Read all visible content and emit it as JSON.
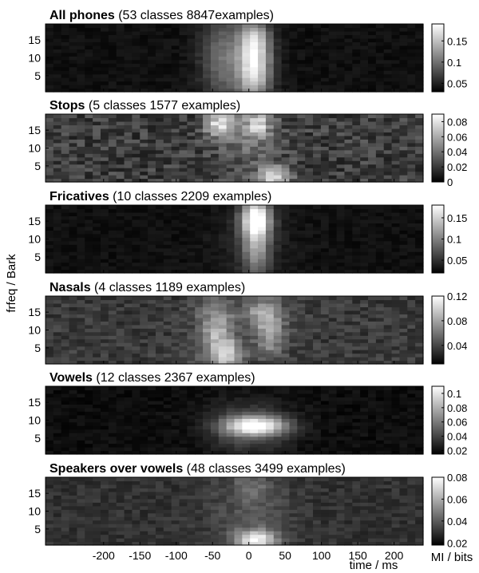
{
  "chart_data": {
    "type": "heatmap",
    "colormap": "gray",
    "x_ticks": [
      -200,
      -150,
      -100,
      -50,
      0,
      50,
      100,
      150,
      200
    ],
    "xlim": [
      -280,
      240
    ],
    "ylim": [
      0.5,
      19.5
    ],
    "grid": false,
    "xlabel": "time / ms",
    "ylabel": "frfeq / Bark",
    "colorbar_label": "MI / bits",
    "panels": [
      {
        "title_bold": "All phones",
        "title_rest": "(53 classes 8847examples)",
        "y_ticks": [
          5,
          10,
          15
        ],
        "cbar_range": [
          0.03,
          0.19
        ],
        "cbar_ticks": [
          0.05,
          0.1,
          0.15
        ],
        "base": 0.04,
        "noise": 0.006,
        "blobs": [
          {
            "t": -35,
            "f": 10,
            "st": 22,
            "sf": 9,
            "a": 0.06
          },
          {
            "t": 8,
            "f": 8,
            "st": 16,
            "sf": 7,
            "a": 0.14
          },
          {
            "t": 8,
            "f": 16,
            "st": 14,
            "sf": 3,
            "a": 0.05
          }
        ]
      },
      {
        "title_bold": "Stops",
        "title_rest": "(5 classes 1577 examples)",
        "y_ticks": [
          5,
          10,
          15
        ],
        "cbar_range": [
          0.0,
          0.09
        ],
        "cbar_ticks": [
          0,
          0.02,
          0.04,
          0.06,
          0.08
        ],
        "base": 0.022,
        "noise": 0.012,
        "blobs": [
          {
            "t": -40,
            "f": 17,
            "st": 14,
            "sf": 2.5,
            "a": 0.055
          },
          {
            "t": 12,
            "f": 17,
            "st": 12,
            "sf": 2.5,
            "a": 0.05
          },
          {
            "t": 35,
            "f": 2,
            "st": 14,
            "sf": 2,
            "a": 0.06
          },
          {
            "t": 0,
            "f": 12,
            "st": 30,
            "sf": 6,
            "a": 0.015
          }
        ]
      },
      {
        "title_bold": "Fricatives",
        "title_rest": "(10 classes 2209 examples)",
        "y_ticks": [
          5,
          10,
          15
        ],
        "cbar_range": [
          0.02,
          0.18
        ],
        "cbar_ticks": [
          0.05,
          0.1,
          0.15
        ],
        "base": 0.03,
        "noise": 0.006,
        "blobs": [
          {
            "t": 10,
            "f": 16,
            "st": 14,
            "sf": 3.5,
            "a": 0.14
          },
          {
            "t": 10,
            "f": 8,
            "st": 13,
            "sf": 6,
            "a": 0.08
          },
          {
            "t": 5,
            "f": 10,
            "st": 35,
            "sf": 8,
            "a": 0.015
          }
        ]
      },
      {
        "title_bold": "Nasals",
        "title_rest": "(4 classes 1189 examples)",
        "y_ticks": [
          5,
          10,
          15
        ],
        "cbar_range": [
          0.01,
          0.12
        ],
        "cbar_ticks": [
          0.04,
          0.08,
          0.12
        ],
        "base": 0.035,
        "noise": 0.01,
        "blobs": [
          {
            "t": -45,
            "f": 10,
            "st": 18,
            "sf": 6,
            "a": 0.05
          },
          {
            "t": -30,
            "f": 3,
            "st": 15,
            "sf": 3,
            "a": 0.055
          },
          {
            "t": 20,
            "f": 15,
            "st": 18,
            "sf": 3,
            "a": 0.05
          },
          {
            "t": 30,
            "f": 8,
            "st": 15,
            "sf": 4,
            "a": 0.04
          }
        ]
      },
      {
        "title_bold": "Vowels",
        "title_rest": "(12 classes 2367 examples)",
        "y_ticks": [
          5,
          10,
          15
        ],
        "cbar_range": [
          0.015,
          0.11
        ],
        "cbar_ticks": [
          0.02,
          0.04,
          0.06,
          0.08,
          0.1
        ],
        "base": 0.02,
        "noise": 0.004,
        "blobs": [
          {
            "t": 10,
            "f": 8.5,
            "st": 30,
            "sf": 1.8,
            "a": 0.075
          },
          {
            "t": 0,
            "f": 8,
            "st": 38,
            "sf": 4.5,
            "a": 0.03
          }
        ]
      },
      {
        "title_bold": "Speakers over vowels",
        "title_rest": "(48 classes 3499 examples)",
        "y_ticks": [
          5,
          10,
          15
        ],
        "cbar_range": [
          0.018,
          0.08
        ],
        "cbar_ticks": [
          0.02,
          0.04,
          0.06,
          0.08
        ],
        "base": 0.03,
        "noise": 0.004,
        "blobs": [
          {
            "t": 10,
            "f": 2,
            "st": 20,
            "sf": 2,
            "a": 0.045
          },
          {
            "t": 5,
            "f": 17,
            "st": 18,
            "sf": 3,
            "a": 0.01
          },
          {
            "t": 0,
            "f": 10,
            "st": 40,
            "sf": 8,
            "a": 0.008
          }
        ]
      }
    ]
  }
}
